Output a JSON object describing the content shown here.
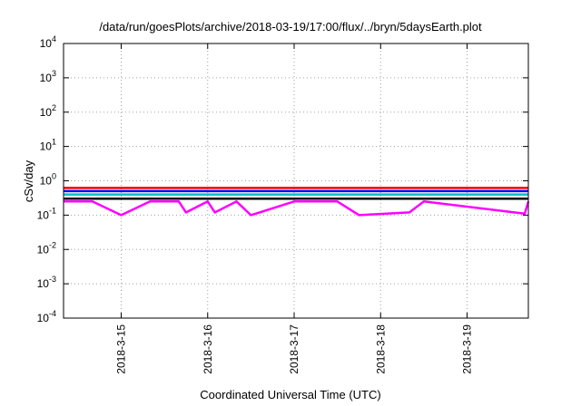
{
  "chart_data": {
    "type": "line",
    "title": "/data/run/goesPlots/archive/2018-03-19/17:00/flux/../bryn/5daysEarth.plot",
    "xlabel": "Coordinated Universal Time (UTC)",
    "ylabel": "cSv/day",
    "yscale": "log",
    "ylim": [
      0.0001,
      10000
    ],
    "y_ticks": [
      {
        "value": 0.0001,
        "base": "10",
        "exp": "-4"
      },
      {
        "value": 0.001,
        "base": "10",
        "exp": "-3"
      },
      {
        "value": 0.01,
        "base": "10",
        "exp": "-2"
      },
      {
        "value": 0.1,
        "base": "10",
        "exp": "-1"
      },
      {
        "value": 1,
        "base": "10",
        "exp": "0"
      },
      {
        "value": 10,
        "base": "10",
        "exp": "1"
      },
      {
        "value": 100,
        "base": "10",
        "exp": "2"
      },
      {
        "value": 1000,
        "base": "10",
        "exp": "3"
      },
      {
        "value": 10000,
        "base": "10",
        "exp": "4"
      }
    ],
    "xlim": [
      "2018-03-14T08:00",
      "2018-03-19T17:00"
    ],
    "x_ticks": [
      "2018-3-15",
      "2018-3-16",
      "2018-3-17",
      "2018-3-18",
      "2018-3-19"
    ],
    "grid": true,
    "series": [
      {
        "color": "#ff00ff",
        "values": [
          0.25,
          0.25,
          0.1,
          0.25,
          0.25,
          0.12,
          0.25,
          0.12,
          0.25,
          0.1,
          0.25,
          0.25,
          0.1,
          0.12,
          0.25,
          0.11,
          0.25
        ]
      },
      {
        "color": "#000000",
        "values": [
          0.3,
          0.3,
          0.3,
          0.3,
          0.3,
          0.3,
          0.3,
          0.3,
          0.3,
          0.3,
          0.3,
          0.3,
          0.3,
          0.3,
          0.3,
          0.3,
          0.3
        ]
      },
      {
        "color": "#00c0c0",
        "values": [
          0.4,
          0.4,
          0.4,
          0.4,
          0.4,
          0.4,
          0.4,
          0.4,
          0.4,
          0.4,
          0.4,
          0.4,
          0.4,
          0.4,
          0.4,
          0.4,
          0.4
        ]
      },
      {
        "color": "#ff0000",
        "values": [
          0.62,
          0.62,
          0.62,
          0.62,
          0.62,
          0.62,
          0.62,
          0.62,
          0.62,
          0.62,
          0.62,
          0.62,
          0.62,
          0.62,
          0.62,
          0.62,
          0.62
        ]
      },
      {
        "color": "#0000ff",
        "values": [
          0.5,
          0.5,
          0.5,
          0.5,
          0.5,
          0.5,
          0.5,
          0.5,
          0.5,
          0.5,
          0.5,
          0.5,
          0.5,
          0.5,
          0.5,
          0.5,
          0.5
        ]
      }
    ],
    "series_x": [
      "2018-03-14T08:00",
      "2018-03-14T16:00",
      "2018-03-15T00:00",
      "2018-03-15T08:00",
      "2018-03-15T16:00",
      "2018-03-15T18:00",
      "2018-03-16T00:00",
      "2018-03-16T02:00",
      "2018-03-16T08:00",
      "2018-03-16T12:00",
      "2018-03-17T00:00",
      "2018-03-17T12:00",
      "2018-03-17T18:00",
      "2018-03-18T08:00",
      "2018-03-18T12:00",
      "2018-03-19T16:00",
      "2018-03-19T17:00"
    ]
  }
}
